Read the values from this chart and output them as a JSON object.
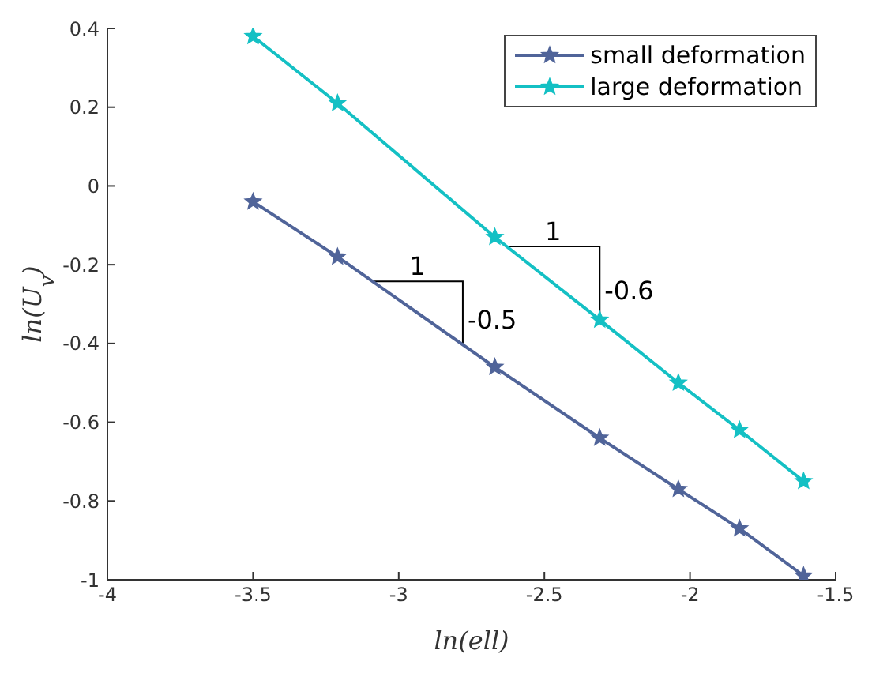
{
  "chart_data": {
    "type": "line",
    "xlabel": "ln(ell)",
    "ylabel": "ln(U$_{v}$)",
    "x": [
      -3.5,
      -3.21,
      -2.67,
      -2.31,
      -2.04,
      -1.83,
      -1.61
    ],
    "series": [
      {
        "name": "small deformation",
        "color": "#506499",
        "values": [
          -0.04,
          -0.18,
          -0.46,
          -0.64,
          -0.77,
          -0.87,
          -0.99
        ]
      },
      {
        "name": "large deformation",
        "color": "#14c0c4",
        "values": [
          0.38,
          0.21,
          -0.13,
          -0.34,
          -0.5,
          -0.62,
          -0.75
        ]
      }
    ],
    "xlim": [
      -4,
      -1.5
    ],
    "xticks": [
      -4,
      -3.5,
      -3,
      -2.5,
      -2,
      -1.5
    ],
    "ylim": [
      -1,
      0.4
    ],
    "yticks": [
      -1,
      -0.8,
      -0.6,
      -0.4,
      -0.2,
      0,
      0.2,
      0.4
    ],
    "grid": false,
    "legend": "top right",
    "marker": "star",
    "line_style": "solid",
    "annotations": [
      "1",
      {
        "text": "-0.5",
        "x": -2.78,
        "y": -0.4
      },
      "1",
      {
        "text": "-0.6",
        "x": -2.31,
        "y": -0.34
      }
    ]
  }
}
